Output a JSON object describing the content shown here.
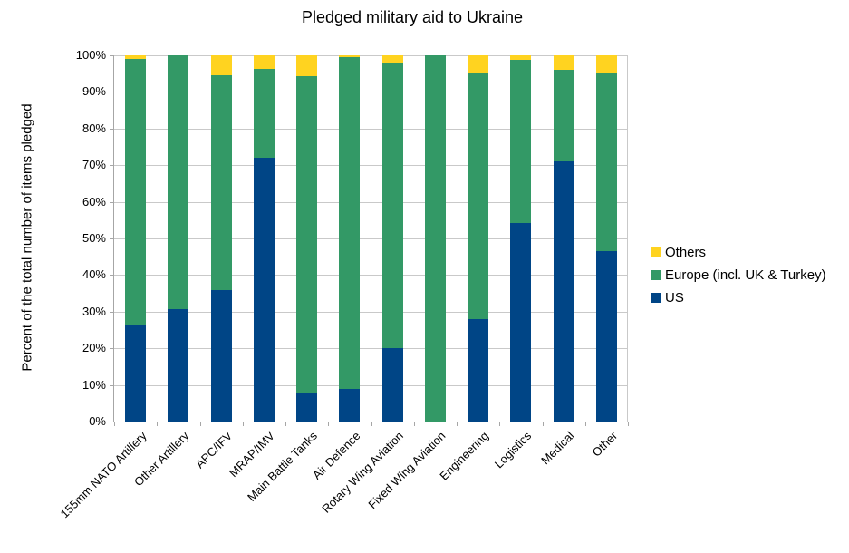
{
  "chart_data": {
    "type": "bar",
    "stacked": true,
    "title": "Pledged military aid to Ukraine",
    "ylabel": "Percent of the total number of items pledged",
    "xlabel": "",
    "ylim": [
      0,
      100
    ],
    "yticks": [
      "0%",
      "10%",
      "20%",
      "30%",
      "40%",
      "50%",
      "60%",
      "70%",
      "80%",
      "90%",
      "100%"
    ],
    "grid": true,
    "legend_position": "right",
    "legend_order_top_to_bottom": [
      "Others",
      "Europe (incl. UK & Turkey)",
      "US"
    ],
    "categories": [
      "155mm NATO Artillery",
      "Other Artillery",
      "APC/IFV",
      "MRAP/IMV",
      "Main Battle Tanks",
      "Air Defence",
      "Rotary Wing Aviation",
      "Fixed Wing Aviation",
      "Engineering",
      "Logistics",
      "Medical",
      "Other"
    ],
    "series": [
      {
        "name": "US",
        "color": "#004586",
        "values": [
          26.3,
          30.6,
          36.0,
          72.0,
          7.7,
          8.8,
          20.0,
          0.0,
          28.0,
          54.3,
          71.0,
          46.5
        ]
      },
      {
        "name": "Europe (incl. UK & Turkey)",
        "color": "#339966",
        "values": [
          72.7,
          69.4,
          58.5,
          24.2,
          86.5,
          90.8,
          78.0,
          100.0,
          67.0,
          44.4,
          25.0,
          48.5
        ]
      },
      {
        "name": "Others",
        "color": "#FFD320",
        "values": [
          1.0,
          0.0,
          5.5,
          3.8,
          5.8,
          0.4,
          2.0,
          0.0,
          5.0,
          1.3,
          4.0,
          5.0
        ]
      }
    ]
  },
  "colors": {
    "grid": "#c9c9c9",
    "axis": "#a6a6a6",
    "text": "#000000",
    "background": "#ffffff"
  }
}
